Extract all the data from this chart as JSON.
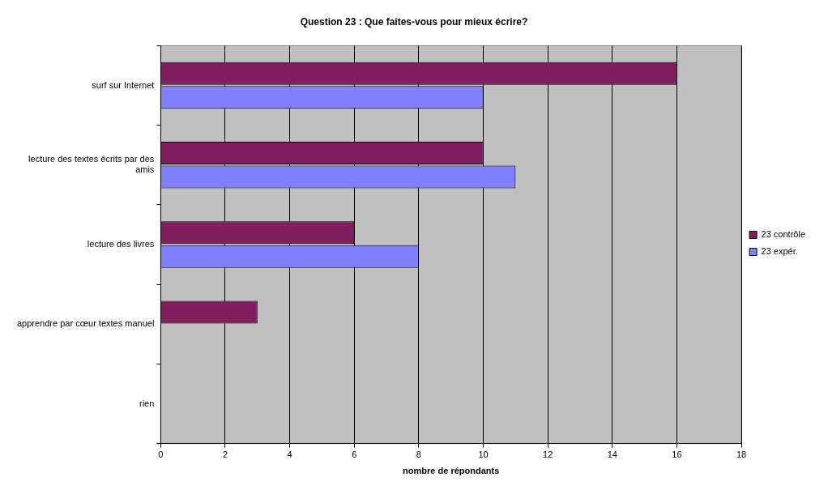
{
  "chart_data": {
    "type": "bar",
    "orientation": "horizontal",
    "title": "Question 23 : Que faites-vous pour mieux écrire?",
    "xlabel": "nombre de répondants",
    "categories": [
      "surf sur Internet",
      "lecture des textes écrits par des amis",
      "lecture des livres",
      "apprendre par cœur textes manuel",
      "rien"
    ],
    "series": [
      {
        "name": "23 contrôle",
        "color": "#7f1f5f",
        "values": [
          16,
          10,
          6,
          3,
          0
        ]
      },
      {
        "name": "23 expér.",
        "color": "#8080ff",
        "values": [
          10,
          11,
          8,
          0,
          0
        ]
      }
    ],
    "xlim": [
      0,
      18
    ],
    "xticks": [
      0,
      2,
      4,
      6,
      8,
      10,
      12,
      14,
      16,
      18
    ],
    "grid": "x",
    "legend": "right"
  }
}
